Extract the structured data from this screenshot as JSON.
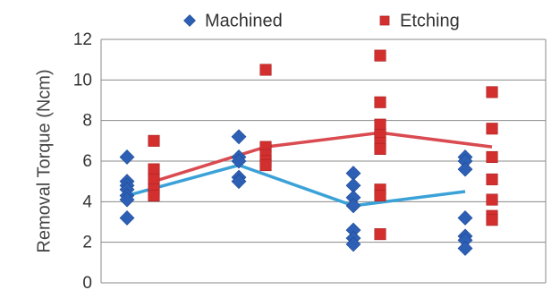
{
  "chart_data": {
    "type": "scatter",
    "title": "",
    "xlabel": "",
    "ylabel": "Removal Torque (Ncm)",
    "ylim": [
      0,
      12
    ],
    "yticks": [
      0,
      2,
      4,
      6,
      8,
      10,
      12
    ],
    "grid": true,
    "legend_position": "top",
    "groups": 4,
    "series": [
      {
        "name": "Machined",
        "marker": "diamond",
        "color": "#2d5fb5",
        "line_color": "#3ba2d8",
        "points": [
          [
            1,
            6.2
          ],
          [
            1,
            5.0
          ],
          [
            1,
            4.8
          ],
          [
            1,
            4.6
          ],
          [
            1,
            4.3
          ],
          [
            1,
            4.1
          ],
          [
            1,
            3.2
          ],
          [
            2,
            7.2
          ],
          [
            2,
            6.2
          ],
          [
            2,
            6.0
          ],
          [
            2,
            5.2
          ],
          [
            2,
            5.0
          ],
          [
            3,
            5.4
          ],
          [
            3,
            4.8
          ],
          [
            3,
            4.2
          ],
          [
            3,
            3.8
          ],
          [
            3,
            2.6
          ],
          [
            3,
            2.2
          ],
          [
            3,
            1.9
          ],
          [
            4,
            6.2
          ],
          [
            4,
            6.0
          ],
          [
            4,
            5.6
          ],
          [
            4,
            3.2
          ],
          [
            4,
            2.3
          ],
          [
            4,
            2.1
          ],
          [
            4,
            1.7
          ]
        ],
        "mean": [
          4.3,
          5.8,
          3.8,
          4.5
        ]
      },
      {
        "name": "Etching",
        "marker": "square",
        "color": "#d32f2f",
        "line_color": "#d94b50",
        "points": [
          [
            1,
            7.0
          ],
          [
            1,
            5.6
          ],
          [
            1,
            5.1
          ],
          [
            1,
            4.6
          ],
          [
            1,
            4.3
          ],
          [
            2,
            10.5
          ],
          [
            2,
            6.7
          ],
          [
            2,
            6.3
          ],
          [
            2,
            6.0
          ],
          [
            2,
            5.8
          ],
          [
            3,
            11.2
          ],
          [
            3,
            8.9
          ],
          [
            3,
            7.8
          ],
          [
            3,
            7.3
          ],
          [
            3,
            6.9
          ],
          [
            3,
            6.6
          ],
          [
            3,
            4.6
          ],
          [
            3,
            4.3
          ],
          [
            3,
            2.4
          ],
          [
            4,
            9.4
          ],
          [
            4,
            7.6
          ],
          [
            4,
            6.2
          ],
          [
            4,
            5.1
          ],
          [
            4,
            4.1
          ],
          [
            4,
            3.3
          ],
          [
            4,
            3.1
          ]
        ],
        "mean": [
          5.0,
          6.7,
          7.4,
          6.7
        ]
      }
    ]
  }
}
